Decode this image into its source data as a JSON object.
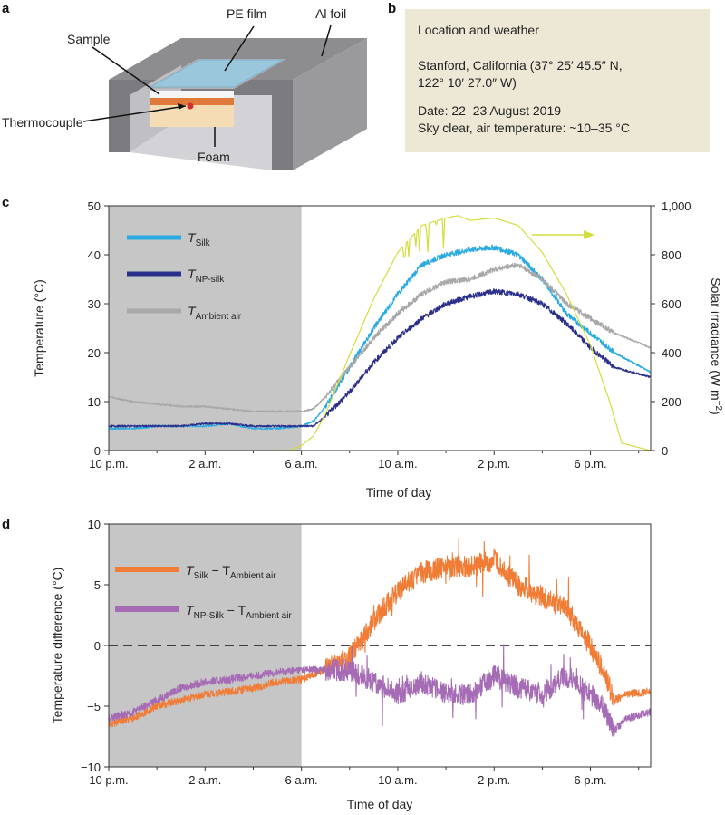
{
  "panel_a": {
    "letter": "a",
    "labels": {
      "pe_film": "PE film",
      "al_foil": "Al foil",
      "sample": "Sample",
      "thermocouple": "Thermocouple",
      "foam": "Foam"
    }
  },
  "panel_b": {
    "letter": "b",
    "title": "Location and weather",
    "location_line1": "Stanford, California (37° 25′ 45.5″ N,",
    "location_line2": "122° 10′ 27.0″ W)",
    "date": "Date: 22–23 August 2019",
    "sky": "Sky clear, air temperature: ~10–35 °C"
  },
  "colors": {
    "silk": "#29abe2",
    "np_silk": "#2b2f8c",
    "ambient": "#a8a8a8",
    "solar": "#d4dc3c",
    "diff_silk": "#f07c36",
    "diff_np": "#a66bb5",
    "night_shade": "#c6c6c6"
  },
  "chart_data": [
    {
      "panel": "c",
      "type": "line",
      "xlabel": "Time of day",
      "ylabel_left": "Temperature (°C)",
      "ylabel_right": "Solar irradiance (W m",
      "ylabel_right_sup": "−2",
      "ylabel_right_close": ")",
      "x_range_hours": [
        0,
        22.5
      ],
      "xticks": [
        0,
        4,
        8,
        12,
        16,
        20
      ],
      "xtick_labels": [
        "10 p.m.",
        "2 a.m.",
        "6 a.m.",
        "10 a.m.",
        "2 p.m.",
        "6 p.m."
      ],
      "ylim_left": [
        0,
        50
      ],
      "yticks_left": [
        "0",
        "10",
        "20",
        "30",
        "40",
        "50"
      ],
      "ylim_right": [
        0,
        1000
      ],
      "yticks_right": [
        "0",
        "200",
        "400",
        "600",
        "800",
        "1,000"
      ],
      "shaded_night_hours": [
        0,
        8
      ],
      "legend": [
        {
          "key": "silk",
          "main": "T",
          "sub": "Silk"
        },
        {
          "key": "np_silk",
          "main": "T",
          "sub": "NP-silk"
        },
        {
          "key": "ambient",
          "main": "T",
          "sub": "Ambient air"
        }
      ],
      "series": [
        {
          "name": "T_Silk",
          "key": "silk",
          "axis": "left",
          "x": [
            0,
            1,
            2,
            3,
            4,
            5,
            6,
            7,
            8,
            8.5,
            9,
            10,
            11,
            12,
            13,
            14,
            15,
            16,
            17,
            18,
            19,
            20,
            21,
            22.5
          ],
          "y": [
            4.5,
            4.5,
            5,
            5,
            5,
            5.5,
            4.5,
            4.5,
            5,
            6,
            9,
            17,
            25,
            32,
            38,
            40,
            41,
            41.5,
            40,
            35,
            28,
            24,
            20,
            16
          ]
        },
        {
          "name": "T_NP-silk",
          "key": "np_silk",
          "axis": "left",
          "x": [
            0,
            1,
            2,
            3,
            4,
            5,
            6,
            7,
            8,
            8.5,
            9,
            10,
            11,
            12,
            13,
            14,
            15,
            16,
            17,
            18,
            19,
            20,
            21,
            22.5
          ],
          "y": [
            5,
            5,
            5,
            5,
            5.5,
            5.5,
            5,
            5,
            5,
            5,
            7,
            12,
            18,
            23,
            27,
            30,
            31.5,
            32.5,
            32,
            30,
            26,
            21,
            17,
            15
          ]
        },
        {
          "name": "T_Ambient air",
          "key": "ambient",
          "axis": "left",
          "x": [
            0,
            1,
            2,
            3,
            4,
            5,
            6,
            7,
            8,
            8.5,
            9,
            10,
            11,
            12,
            13,
            14,
            15,
            16,
            17,
            18,
            19,
            20,
            21,
            22.5
          ],
          "y": [
            11,
            10,
            9.5,
            9,
            9,
            8.5,
            8,
            8,
            8,
            8.5,
            11,
            17,
            23,
            28,
            32,
            34.5,
            35,
            37,
            38,
            35,
            30,
            27,
            24,
            21
          ]
        },
        {
          "name": "Solar irradiance",
          "key": "solar",
          "axis": "right",
          "x": [
            0,
            6.5,
            7.5,
            8,
            8.5,
            9,
            10,
            11,
            12,
            13,
            14,
            14.5,
            15,
            16,
            17,
            18,
            19,
            20,
            20.8,
            21.3,
            22.5
          ],
          "y": [
            null,
            0,
            0,
            20,
            60,
            150,
            390,
            620,
            810,
            920,
            950,
            960,
            940,
            950,
            920,
            810,
            640,
            430,
            200,
            30,
            0
          ]
        }
      ],
      "annotation_arrow": "right-axis pointer"
    },
    {
      "panel": "d",
      "type": "line",
      "xlabel": "Time of day",
      "ylabel": "Temperature difference (°C)",
      "x_range_hours": [
        0,
        22.5
      ],
      "xticks": [
        0,
        4,
        8,
        12,
        16,
        20
      ],
      "xtick_labels": [
        "10 p.m.",
        "2 a.m.",
        "6 a.m.",
        "10 a.m.",
        "2 p.m.",
        "6 p.m."
      ],
      "ylim": [
        -10,
        10
      ],
      "yticks": [
        "−10",
        "−5",
        "0",
        "5",
        "10"
      ],
      "zero_line": 0,
      "shaded_night_hours": [
        0,
        8
      ],
      "legend": [
        {
          "key": "diff_silk",
          "main1": "T",
          "sub1": "Silk",
          "mid": " − T",
          "sub2": "Ambient air"
        },
        {
          "key": "diff_np",
          "main1": "T",
          "sub1": "NP-Silk",
          "mid": " − T",
          "sub2": "Ambient air"
        }
      ],
      "series": [
        {
          "name": "T_Silk − T_Ambient air",
          "key": "diff_silk",
          "x": [
            0,
            1,
            2,
            3,
            4,
            5,
            6,
            7,
            8,
            9,
            10,
            11,
            12,
            13,
            14,
            15,
            16,
            17,
            18,
            19,
            19.5,
            20,
            20.5,
            21,
            21.5,
            22.5
          ],
          "y": [
            -6.5,
            -6,
            -5,
            -4.5,
            -4,
            -3.8,
            -3.5,
            -3,
            -2.8,
            -2,
            -1,
            2,
            4.5,
            6,
            6.5,
            6.5,
            7,
            5,
            4,
            3,
            1.5,
            0,
            -2,
            -4.5,
            -4,
            -3.8
          ]
        },
        {
          "name": "T_NP-Silk − T_Ambient air",
          "key": "diff_np",
          "x": [
            0,
            1,
            2,
            3,
            4,
            5,
            6,
            7,
            8,
            9,
            10,
            11,
            12,
            13,
            14,
            15,
            16,
            17,
            18,
            19,
            20,
            20.5,
            21,
            21.5,
            22.5
          ],
          "y": [
            -6,
            -5.5,
            -4.5,
            -3.5,
            -3,
            -2.8,
            -2.5,
            -2.2,
            -2,
            -2,
            -2,
            -3,
            -4,
            -3,
            -4,
            -4,
            -2.5,
            -3.5,
            -4,
            -2.5,
            -4,
            -5,
            -7,
            -6,
            -5.5
          ]
        }
      ]
    }
  ]
}
